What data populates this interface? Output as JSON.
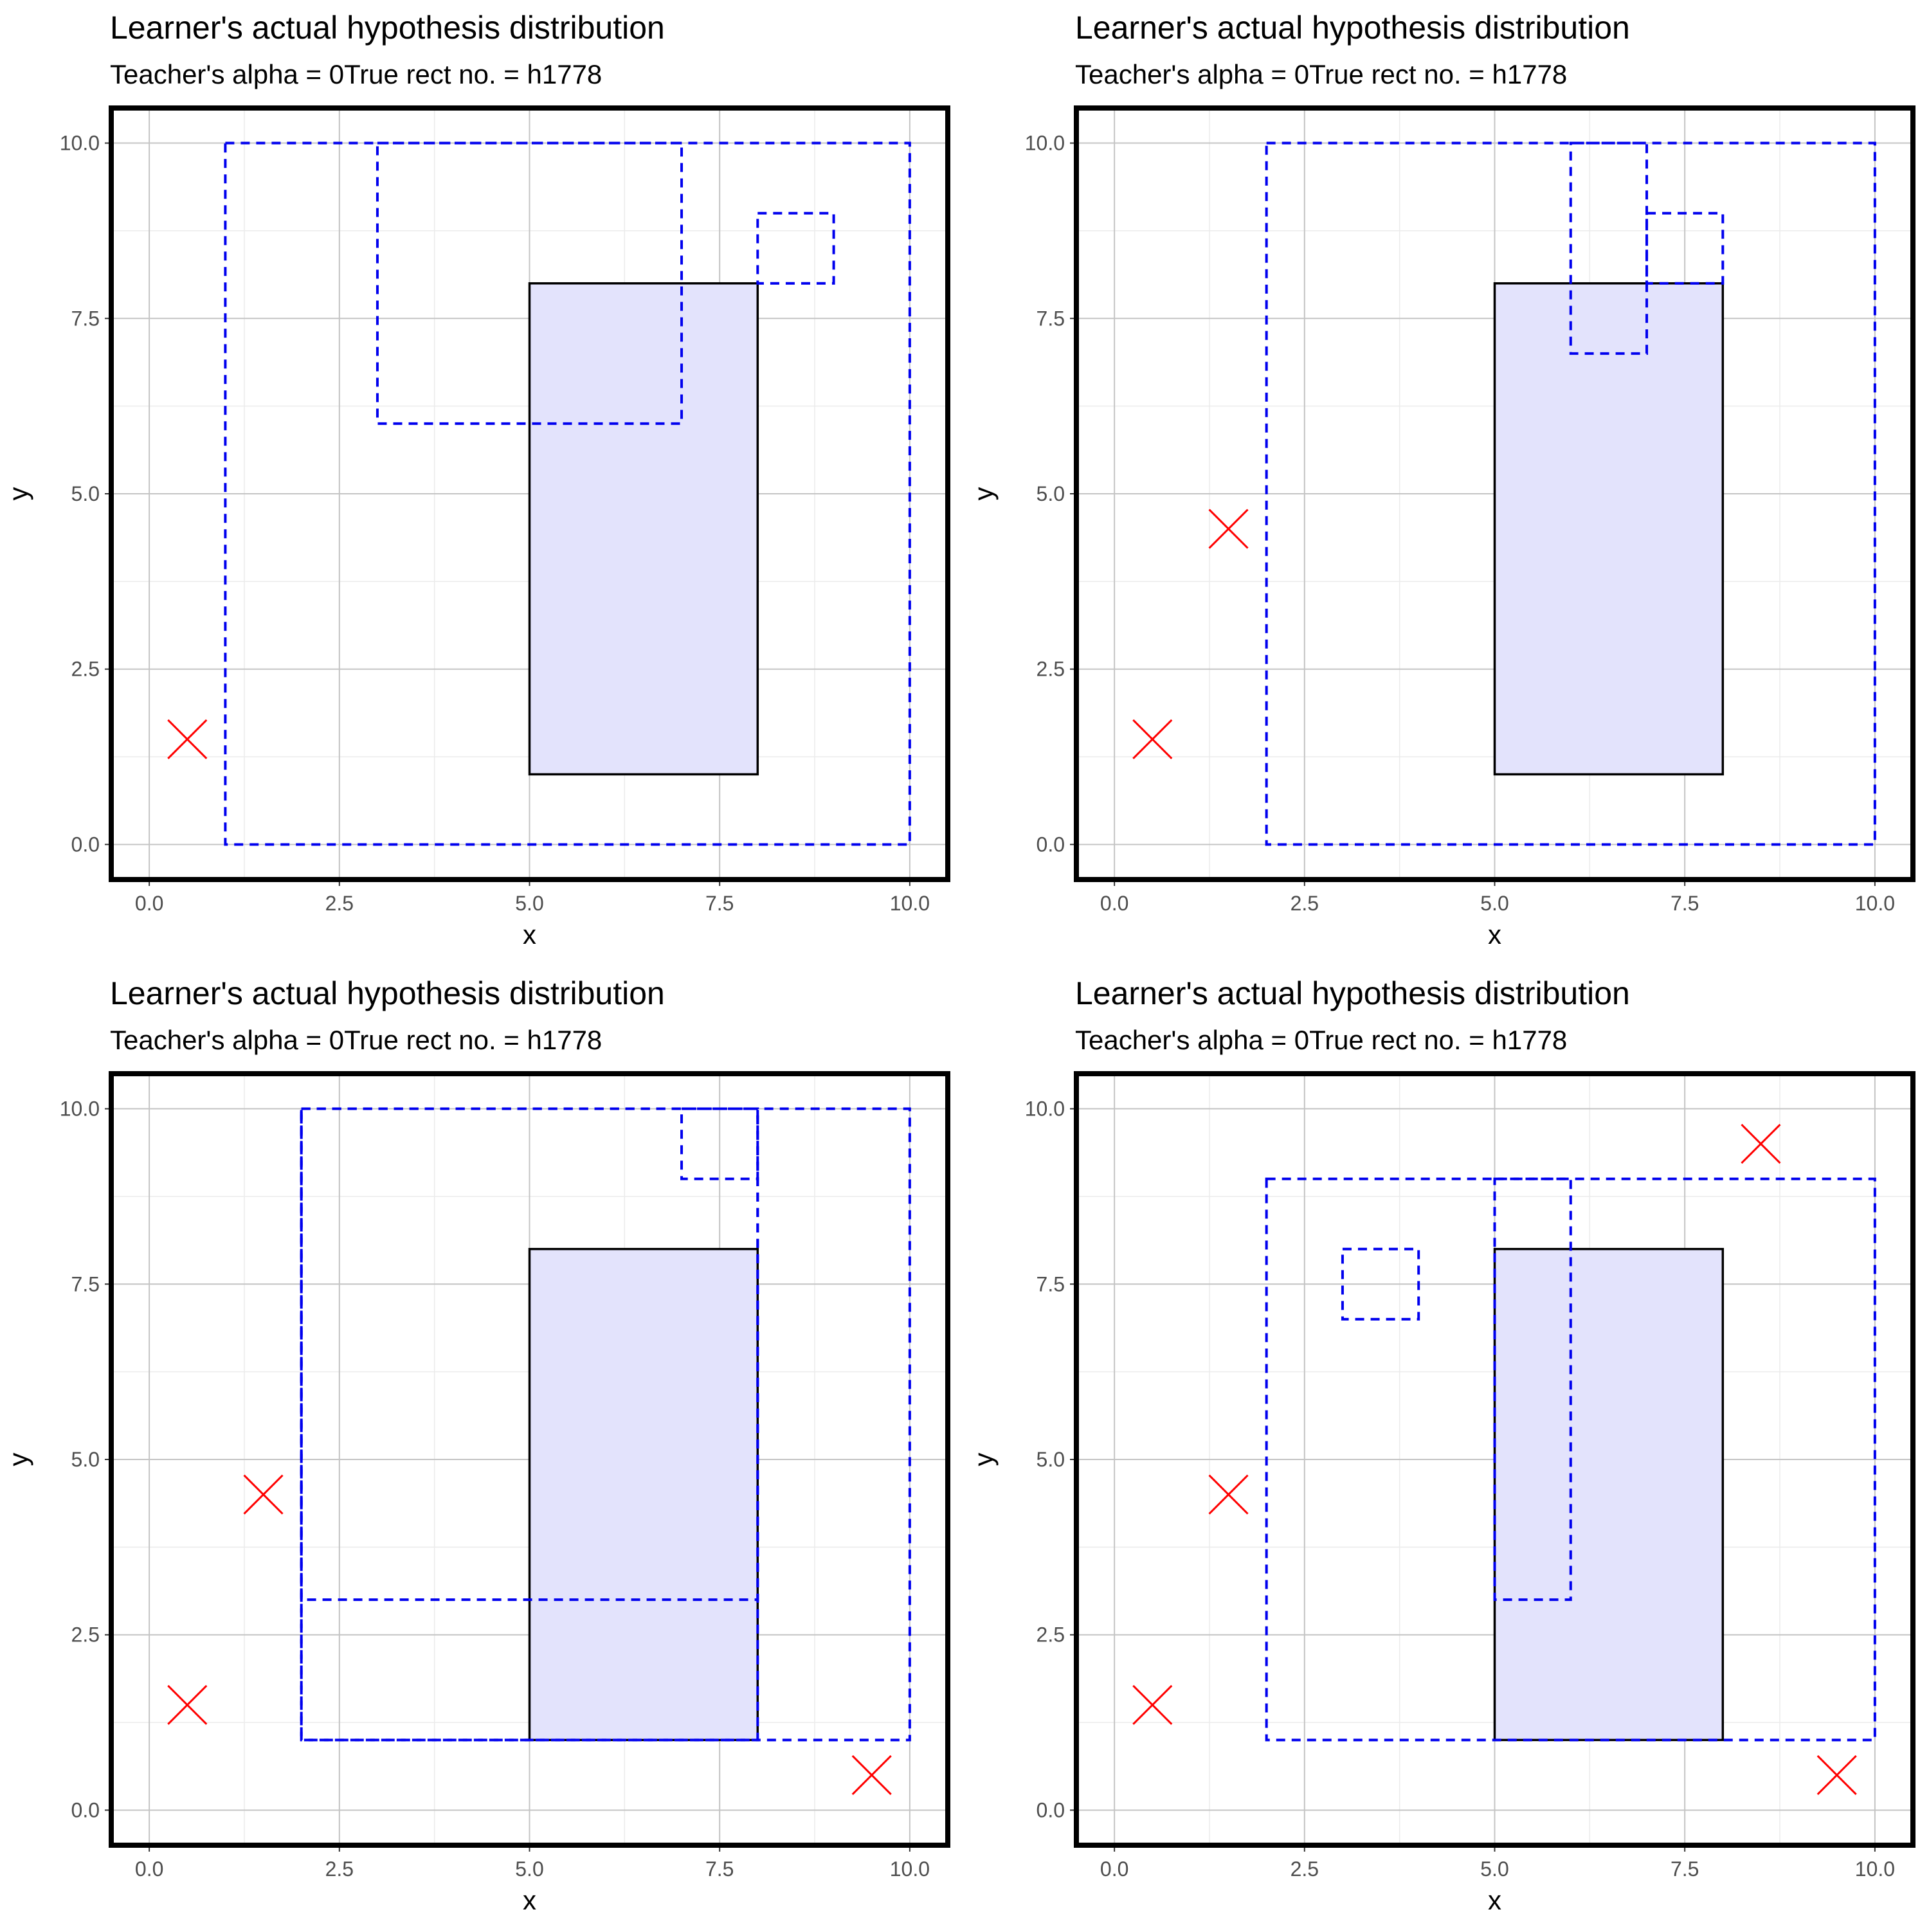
{
  "colors": {
    "true_rect_fill": "#e3e3fc",
    "true_rect_stroke": "#000000",
    "hypothesis_stroke": "#0000ee",
    "negative_marker": "#ff0000",
    "grid_major": "#c4c4c4",
    "grid_minor": "#ebebeb",
    "panel_border": "#000000"
  },
  "chart_data": [
    {
      "type": "scatter",
      "title": "Learner's actual hypothesis distribution",
      "subtitle": "Teacher's alpha = 0True rect no. = h1778",
      "xlabel": "x",
      "ylabel": "y",
      "xlim": [
        -0.5,
        10.5
      ],
      "ylim": [
        -0.5,
        10.5
      ],
      "x_ticks": [
        "0.0",
        "2.5",
        "5.0",
        "7.5",
        "10.0"
      ],
      "y_ticks": [
        "0.0",
        "2.5",
        "5.0",
        "7.5",
        "10.0"
      ],
      "true_rectangle": {
        "x0": 5,
        "x1": 8,
        "y0": 1,
        "y1": 8
      },
      "hypotheses": [
        {
          "x0": 1,
          "x1": 10,
          "y0": 0,
          "y1": 10
        },
        {
          "x0": 3,
          "x1": 7,
          "y0": 6,
          "y1": 10
        },
        {
          "x0": 8,
          "x1": 9,
          "y0": 8,
          "y1": 9
        }
      ],
      "negative_points": [
        {
          "x": 0.5,
          "y": 1.5
        }
      ]
    },
    {
      "type": "scatter",
      "title": "Learner's actual hypothesis distribution",
      "subtitle": "Teacher's alpha = 0True rect no. = h1778",
      "xlabel": "x",
      "ylabel": "y",
      "xlim": [
        -0.5,
        10.5
      ],
      "ylim": [
        -0.5,
        10.5
      ],
      "x_ticks": [
        "0.0",
        "2.5",
        "5.0",
        "7.5",
        "10.0"
      ],
      "y_ticks": [
        "0.0",
        "2.5",
        "5.0",
        "7.5",
        "10.0"
      ],
      "true_rectangle": {
        "x0": 5,
        "x1": 8,
        "y0": 1,
        "y1": 8
      },
      "hypotheses": [
        {
          "x0": 2,
          "x1": 10,
          "y0": 0,
          "y1": 10
        },
        {
          "x0": 6,
          "x1": 7,
          "y0": 7,
          "y1": 10
        },
        {
          "x0": 7,
          "x1": 8,
          "y0": 8,
          "y1": 9
        }
      ],
      "negative_points": [
        {
          "x": 0.5,
          "y": 1.5
        },
        {
          "x": 1.5,
          "y": 4.5
        }
      ]
    },
    {
      "type": "scatter",
      "title": "Learner's actual hypothesis distribution",
      "subtitle": "Teacher's alpha = 0True rect no. = h1778",
      "xlabel": "x",
      "ylabel": "y",
      "xlim": [
        -0.5,
        10.5
      ],
      "ylim": [
        -0.5,
        10.5
      ],
      "x_ticks": [
        "0.0",
        "2.5",
        "5.0",
        "7.5",
        "10.0"
      ],
      "y_ticks": [
        "0.0",
        "2.5",
        "5.0",
        "7.5",
        "10.0"
      ],
      "true_rectangle": {
        "x0": 5,
        "x1": 8,
        "y0": 1,
        "y1": 8
      },
      "hypotheses": [
        {
          "x0": 2,
          "x1": 10,
          "y0": 1,
          "y1": 10
        },
        {
          "x0": 2,
          "x1": 8,
          "y0": 3,
          "y1": 10
        },
        {
          "x0": 7,
          "x1": 8,
          "y0": 9,
          "y1": 10
        },
        {
          "x0": 2,
          "x1": 8,
          "y0": 1,
          "y1": 10
        }
      ],
      "negative_points": [
        {
          "x": 0.5,
          "y": 1.5
        },
        {
          "x": 1.5,
          "y": 4.5
        },
        {
          "x": 9.5,
          "y": 0.5
        }
      ]
    },
    {
      "type": "scatter",
      "title": "Learner's actual hypothesis distribution",
      "subtitle": "Teacher's alpha = 0True rect no. = h1778",
      "xlabel": "x",
      "ylabel": "y",
      "xlim": [
        -0.5,
        10.5
      ],
      "ylim": [
        -0.5,
        10.5
      ],
      "x_ticks": [
        "0.0",
        "2.5",
        "5.0",
        "7.5",
        "10.0"
      ],
      "y_ticks": [
        "0.0",
        "2.5",
        "5.0",
        "7.5",
        "10.0"
      ],
      "true_rectangle": {
        "x0": 5,
        "x1": 8,
        "y0": 1,
        "y1": 8
      },
      "hypotheses": [
        {
          "x0": 2,
          "x1": 10,
          "y0": 1,
          "y1": 9
        },
        {
          "x0": 3,
          "x1": 4,
          "y0": 7,
          "y1": 8
        },
        {
          "x0": 5,
          "x1": 6,
          "y0": 3,
          "y1": 9
        }
      ],
      "negative_points": [
        {
          "x": 0.5,
          "y": 1.5
        },
        {
          "x": 1.5,
          "y": 4.5
        },
        {
          "x": 8.5,
          "y": 9.5
        },
        {
          "x": 9.5,
          "y": 0.5
        }
      ]
    }
  ]
}
